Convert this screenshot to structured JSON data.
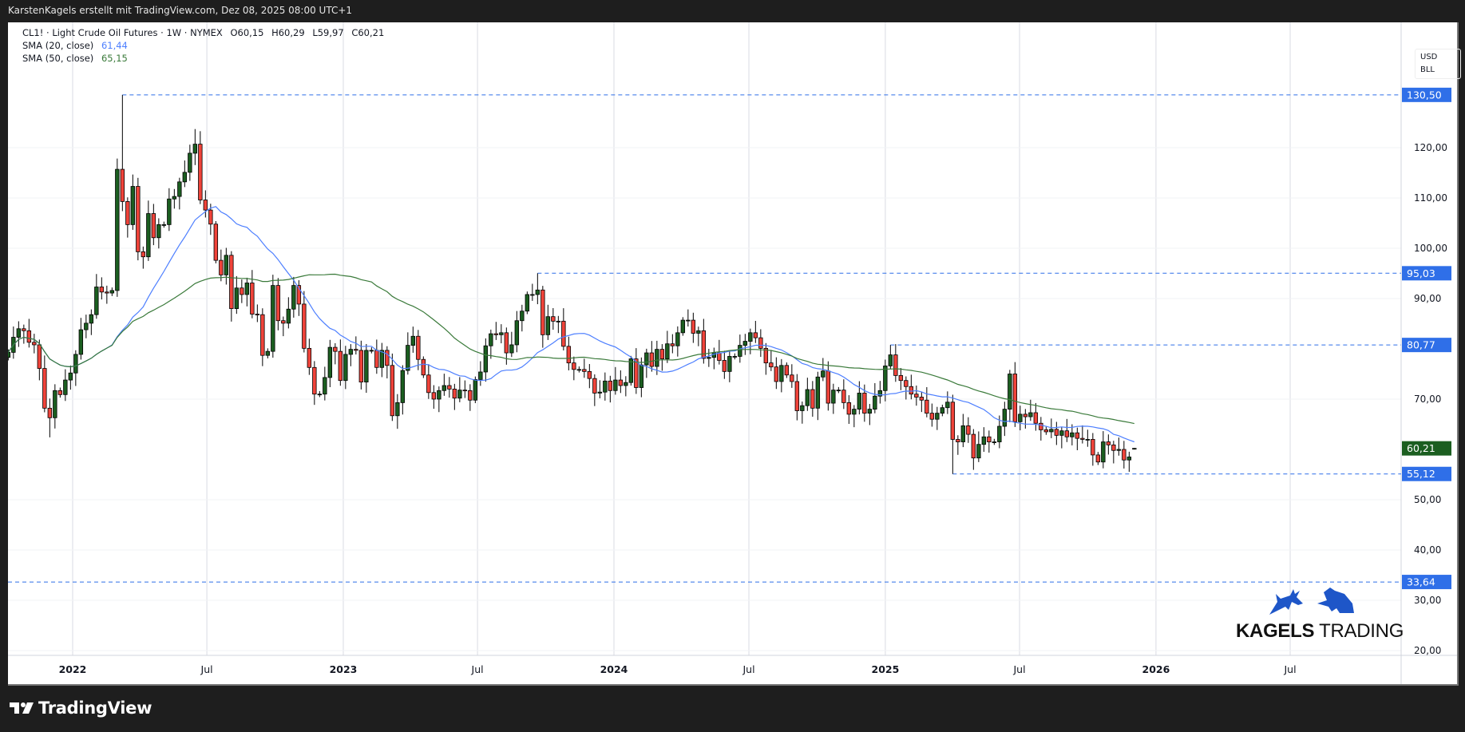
{
  "title_bar": "KarstenKagels erstellt mit TradingView.com, Dez 08, 2025 08:00 UTC+1",
  "legend": {
    "symbol": "CL1! · Light Crude Oil Futures · 1W · NYMEX",
    "open": "O60,15",
    "high": "H60,29",
    "low": "L59,97",
    "close": "C60,21",
    "sma20_label": "SMA (20, close)",
    "sma20_value": "61,44",
    "sma50_label": "SMA (50, close)",
    "sma50_value": "65,15"
  },
  "price_axis": {
    "currency": "USD",
    "unit": "BLL"
  },
  "branding": {
    "logo_text_bold": "KAGELS",
    "logo_text_light": "TRADING"
  },
  "footer": {
    "logo": "TradingView"
  },
  "colors": {
    "up": "#1b5e20",
    "down": "#f0433a",
    "sma20": "#4d7fff",
    "sma50": "#3a7a3a",
    "level": "#2f6fe8",
    "last_price": "#1b5e20"
  },
  "chart_data": {
    "type": "candlestick",
    "title": "CL1! · Light Crude Oil Futures · 1W · NYMEX",
    "interval": "1W",
    "first_week": "2021-10-04",
    "closes": [
      79.3,
      82.3,
      84.0,
      83.6,
      81.3,
      80.8,
      76.1,
      68.2,
      66.3,
      71.7,
      70.9,
      73.8,
      75.2,
      78.9,
      83.8,
      85.1,
      86.8,
      92.3,
      91.3,
      91.1,
      91.6,
      115.7,
      109.3,
      104.7,
      112.3,
      99.3,
      98.3,
      106.9,
      102.1,
      104.7,
      104.7,
      109.8,
      110.3,
      113.2,
      115.1,
      118.9,
      120.7,
      109.6,
      107.6,
      104.8,
      97.6,
      94.7,
      98.6,
      88.0,
      92.1,
      90.8,
      93.1,
      86.9,
      86.8,
      78.7,
      79.5,
      92.6,
      85.6,
      85.1,
      87.9,
      92.6,
      88.9,
      80.1,
      76.3,
      71.0,
      71.0,
      74.3,
      80.3,
      79.5,
      73.7,
      78.9,
      79.9,
      79.7,
      73.4,
      79.7,
      79.7,
      76.3,
      79.7,
      76.7,
      66.7,
      69.3,
      75.7,
      80.7,
      82.5,
      77.9,
      74.8,
      71.3,
      70.0,
      71.7,
      72.7,
      72.0,
      70.2,
      71.8,
      71.7,
      69.8,
      73.9,
      75.4,
      80.6,
      83.0,
      82.8,
      83.2,
      79.2,
      80.8,
      85.6,
      87.5,
      90.8,
      90.8,
      91.7,
      82.8,
      86.4,
      85.5,
      85.5,
      80.5,
      77.2,
      75.9,
      75.9,
      75.5,
      74.1,
      71.2,
      71.4,
      73.6,
      71.7,
      73.8,
      72.7,
      73.3,
      78.0,
      72.3,
      76.8,
      79.2,
      76.5,
      79.9,
      78.0,
      81.0,
      80.6,
      83.2,
      85.7,
      85.7,
      83.1,
      83.6,
      78.1,
      78.3,
      79.2,
      77.7,
      75.5,
      78.5,
      78.5,
      80.7,
      81.5,
      83.2,
      82.2,
      80.1,
      77.2,
      76.4,
      73.5,
      76.7,
      74.8,
      73.5,
      67.7,
      68.7,
      71.9,
      68.2,
      74.4,
      75.6,
      69.2,
      71.8,
      71.8,
      69.3,
      67.0,
      68.0,
      71.2,
      67.2,
      68.0,
      70.6,
      71.7,
      76.6,
      78.8,
      74.7,
      73.7,
      72.5,
      71.0,
      70.4,
      69.8,
      67.2,
      66.0,
      67.2,
      68.3,
      69.4,
      61.99,
      61.5,
      64.7,
      63.0,
      58.3,
      61.0,
      62.5,
      61.5,
      61.5,
      64.6,
      68.0,
      75.0,
      65.5,
      67.0,
      66.5,
      67.3,
      65.2,
      63.9,
      63.5,
      64.0,
      62.8,
      63.7,
      62.5,
      63.3,
      62.2,
      62.0,
      62.0,
      58.9,
      57.5,
      61.5,
      60.9,
      59.8,
      60.0,
      57.9,
      58.5,
      60.21
    ],
    "last_candle": {
      "open": 60.15,
      "high": 60.29,
      "low": 59.97,
      "close": 60.21
    },
    "extremes": [
      {
        "index": 22,
        "high": 130.5
      },
      {
        "index": 36,
        "high": 123.7
      },
      {
        "index": 8,
        "low": 62.4
      },
      {
        "index": 75,
        "low": 64.1
      },
      {
        "index": 102,
        "high": 95.03
      },
      {
        "index": 170,
        "high": 80.77
      },
      {
        "index": 182,
        "low": 55.12
      }
    ],
    "indicators": [
      {
        "name": "SMA (20, close)",
        "period": 20,
        "last": 61.44
      },
      {
        "name": "SMA (50, close)",
        "period": 50,
        "last": 65.15
      }
    ],
    "levels": [
      {
        "price": 130.5,
        "label": "130,50",
        "from_index": 22
      },
      {
        "price": 95.03,
        "label": "95,03",
        "from_index": 102
      },
      {
        "price": 80.77,
        "label": "80,77",
        "from_index": 170
      },
      {
        "price": 55.12,
        "label": "55,12",
        "from_index": 182
      },
      {
        "price": 33.64,
        "label": "33,64",
        "from_index": -2
      }
    ],
    "last_price_label": "60,21",
    "y_ticks": [
      {
        "v": 120,
        "label": "120,00"
      },
      {
        "v": 110,
        "label": "110,00"
      },
      {
        "v": 100,
        "label": "100,00"
      },
      {
        "v": 90,
        "label": "90,00"
      },
      {
        "v": 70,
        "label": "70,00"
      },
      {
        "v": 50,
        "label": "50,00"
      },
      {
        "v": 40,
        "label": "40,00"
      },
      {
        "v": 30,
        "label": "30,00"
      },
      {
        "v": 20,
        "label": "20,00"
      }
    ],
    "x_ticks": [
      {
        "date": "2022-01-01",
        "label": "2022",
        "bold": true
      },
      {
        "date": "2022-07-01",
        "label": "Jul"
      },
      {
        "date": "2023-01-01",
        "label": "2023",
        "bold": true
      },
      {
        "date": "2023-07-01",
        "label": "Jul"
      },
      {
        "date": "2024-01-01",
        "label": "2024",
        "bold": true
      },
      {
        "date": "2024-07-01",
        "label": "Jul"
      },
      {
        "date": "2025-01-01",
        "label": "2025",
        "bold": true
      },
      {
        "date": "2025-07-01",
        "label": "Jul"
      },
      {
        "date": "2026-01-01",
        "label": "2026",
        "bold": true
      },
      {
        "date": "2026-07-01",
        "label": "Jul"
      }
    ],
    "ylim": [
      20,
      130.5
    ]
  }
}
